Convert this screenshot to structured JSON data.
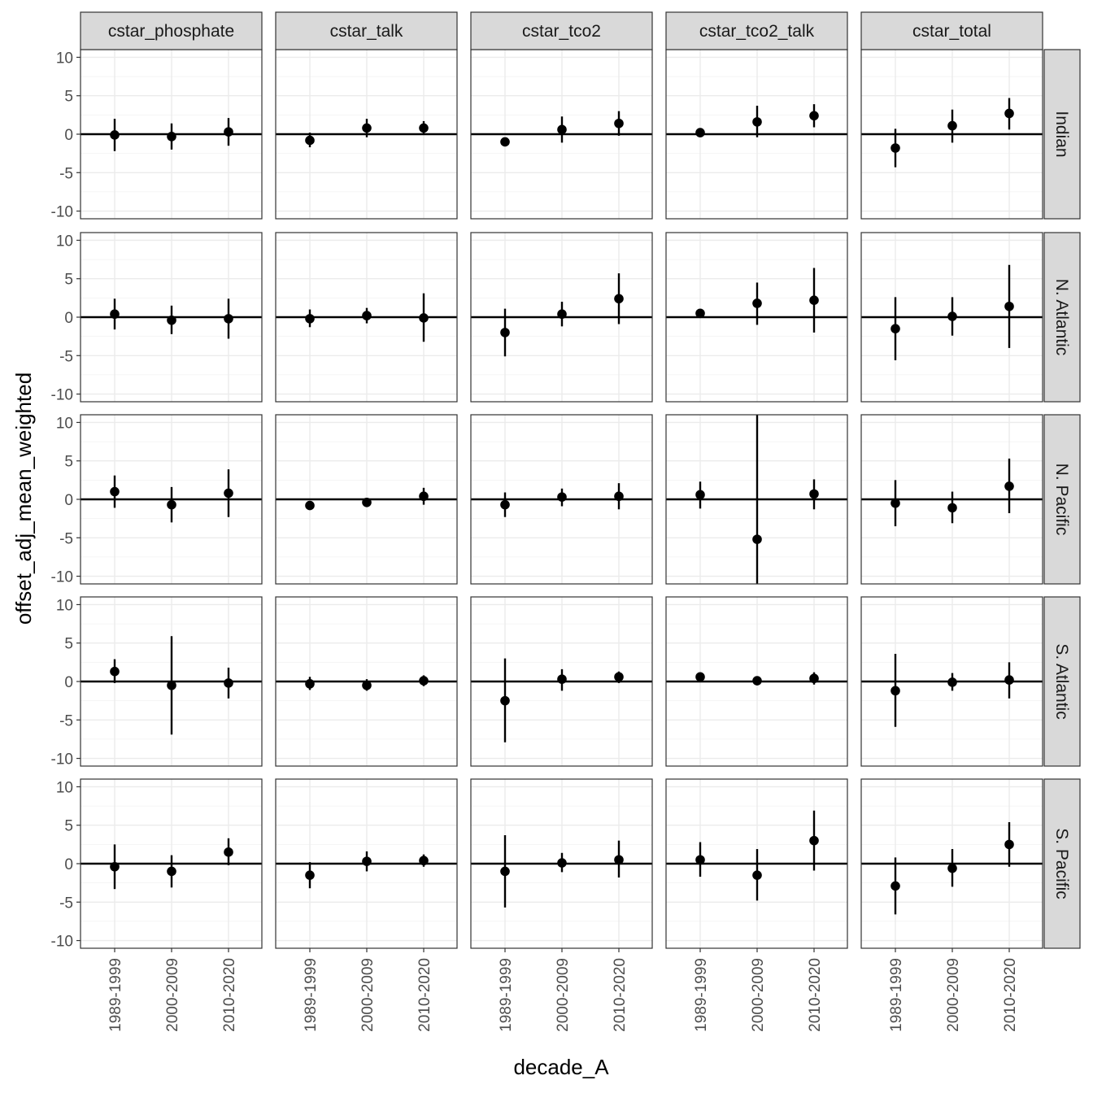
{
  "chart_data": {
    "type": "pointrange-facet-grid",
    "xlabel": "decade_A",
    "ylabel": "offset_adj_mean_weighted",
    "ylim": [
      -11,
      11
    ],
    "yticks": [
      -10,
      -5,
      0,
      5,
      10
    ],
    "categories": [
      "1989-1999",
      "2000-2009",
      "2010-2020"
    ],
    "columns": [
      "cstar_phosphate",
      "cstar_talk",
      "cstar_tco2",
      "cstar_tco2_talk",
      "cstar_total"
    ],
    "rows": [
      "Indian",
      "N. Atlantic",
      "N. Pacific",
      "S. Atlantic",
      "S. Pacific"
    ],
    "reference_line": 0,
    "panels": [
      [
        [
          {
            "y": -0.1,
            "lo": -2.2,
            "hi": 2.0
          },
          {
            "y": -0.3,
            "lo": -2.0,
            "hi": 1.4
          },
          {
            "y": 0.3,
            "lo": -1.5,
            "hi": 2.1
          }
        ],
        [
          {
            "y": -0.8,
            "lo": -1.7,
            "hi": 0.2
          },
          {
            "y": 0.8,
            "lo": -0.4,
            "hi": 2.0
          },
          {
            "y": 0.8,
            "lo": 0.0,
            "hi": 1.7
          }
        ],
        [
          {
            "y": -1.0,
            "lo": -1.4,
            "hi": -0.6
          },
          {
            "y": 0.6,
            "lo": -1.1,
            "hi": 2.3
          },
          {
            "y": 1.4,
            "lo": -0.2,
            "hi": 3.0
          }
        ],
        [
          {
            "y": 0.2,
            "lo": -0.1,
            "hi": 0.6
          },
          {
            "y": 1.6,
            "lo": -0.4,
            "hi": 3.7
          },
          {
            "y": 2.4,
            "lo": 0.9,
            "hi": 3.9
          }
        ],
        [
          {
            "y": -1.8,
            "lo": -4.3,
            "hi": 0.7
          },
          {
            "y": 1.1,
            "lo": -1.1,
            "hi": 3.2
          },
          {
            "y": 2.7,
            "lo": 0.6,
            "hi": 4.7
          }
        ]
      ],
      [
        [
          {
            "y": 0.4,
            "lo": -1.6,
            "hi": 2.4
          },
          {
            "y": -0.4,
            "lo": -2.2,
            "hi": 1.5
          },
          {
            "y": -0.2,
            "lo": -2.8,
            "hi": 2.4
          }
        ],
        [
          {
            "y": -0.2,
            "lo": -1.3,
            "hi": 1.0
          },
          {
            "y": 0.2,
            "lo": -0.8,
            "hi": 1.2
          },
          {
            "y": -0.1,
            "lo": -3.2,
            "hi": 3.1
          }
        ],
        [
          {
            "y": -2.0,
            "lo": -5.1,
            "hi": 1.1
          },
          {
            "y": 0.4,
            "lo": -1.2,
            "hi": 2.0
          },
          {
            "y": 2.4,
            "lo": -0.9,
            "hi": 5.7
          }
        ],
        [
          {
            "y": 0.5,
            "lo": 0.1,
            "hi": 0.9
          },
          {
            "y": 1.8,
            "lo": -1.0,
            "hi": 4.5
          },
          {
            "y": 2.2,
            "lo": -2.0,
            "hi": 6.4
          }
        ],
        [
          {
            "y": -1.5,
            "lo": -5.6,
            "hi": 2.6
          },
          {
            "y": 0.1,
            "lo": -2.4,
            "hi": 2.6
          },
          {
            "y": 1.4,
            "lo": -4.0,
            "hi": 6.8
          }
        ]
      ],
      [
        [
          {
            "y": 1.0,
            "lo": -1.1,
            "hi": 3.1
          },
          {
            "y": -0.7,
            "lo": -3.0,
            "hi": 1.6
          },
          {
            "y": 0.8,
            "lo": -2.3,
            "hi": 3.9
          }
        ],
        [
          {
            "y": -0.8,
            "lo": -1.2,
            "hi": -0.4
          },
          {
            "y": -0.4,
            "lo": -0.8,
            "hi": 0.0
          },
          {
            "y": 0.4,
            "lo": -0.7,
            "hi": 1.5
          }
        ],
        [
          {
            "y": -0.7,
            "lo": -2.3,
            "hi": 0.9
          },
          {
            "y": 0.3,
            "lo": -0.9,
            "hi": 1.4
          },
          {
            "y": 0.4,
            "lo": -1.3,
            "hi": 2.1
          }
        ],
        [
          {
            "y": 0.6,
            "lo": -1.2,
            "hi": 2.3
          },
          {
            "y": -5.2,
            "lo": -11.0,
            "hi": 11.0
          },
          {
            "y": 0.7,
            "lo": -1.3,
            "hi": 2.6
          }
        ],
        [
          {
            "y": -0.5,
            "lo": -3.5,
            "hi": 2.5
          },
          {
            "y": -1.1,
            "lo": -3.1,
            "hi": 1.0
          },
          {
            "y": 1.7,
            "lo": -1.8,
            "hi": 5.3
          }
        ]
      ],
      [
        [
          {
            "y": 1.3,
            "lo": -0.2,
            "hi": 2.9
          },
          {
            "y": -0.5,
            "lo": -6.9,
            "hi": 5.9
          },
          {
            "y": -0.2,
            "lo": -2.2,
            "hi": 1.8
          }
        ],
        [
          {
            "y": -0.3,
            "lo": -1.1,
            "hi": 0.6
          },
          {
            "y": -0.5,
            "lo": -1.2,
            "hi": 0.3
          },
          {
            "y": 0.1,
            "lo": -0.6,
            "hi": 0.8
          }
        ],
        [
          {
            "y": -2.5,
            "lo": -7.9,
            "hi": 3.0
          },
          {
            "y": 0.3,
            "lo": -1.2,
            "hi": 1.6
          },
          {
            "y": 0.6,
            "lo": -0.2,
            "hi": 1.3
          }
        ],
        [
          {
            "y": 0.6,
            "lo": 0.3,
            "hi": 0.9
          },
          {
            "y": 0.1,
            "lo": -0.2,
            "hi": 0.4
          },
          {
            "y": 0.4,
            "lo": -0.4,
            "hi": 1.2
          }
        ],
        [
          {
            "y": -1.2,
            "lo": -5.9,
            "hi": 3.6
          },
          {
            "y": -0.1,
            "lo": -1.2,
            "hi": 1.1
          },
          {
            "y": 0.2,
            "lo": -2.2,
            "hi": 2.5
          }
        ]
      ],
      [
        [
          {
            "y": -0.4,
            "lo": -3.3,
            "hi": 2.5
          },
          {
            "y": -1.0,
            "lo": -3.1,
            "hi": 1.1
          },
          {
            "y": 1.5,
            "lo": -0.2,
            "hi": 3.3
          }
        ],
        [
          {
            "y": -1.5,
            "lo": -3.2,
            "hi": 0.2
          },
          {
            "y": 0.3,
            "lo": -1.0,
            "hi": 1.6
          },
          {
            "y": 0.4,
            "lo": -0.4,
            "hi": 1.2
          }
        ],
        [
          {
            "y": -1.0,
            "lo": -5.7,
            "hi": 3.7
          },
          {
            "y": 0.1,
            "lo": -1.1,
            "hi": 1.4
          },
          {
            "y": 0.5,
            "lo": -1.8,
            "hi": 3.0
          }
        ],
        [
          {
            "y": 0.5,
            "lo": -1.7,
            "hi": 2.8
          },
          {
            "y": -1.5,
            "lo": -4.8,
            "hi": 1.9
          },
          {
            "y": 3.0,
            "lo": -0.9,
            "hi": 6.9
          }
        ],
        [
          {
            "y": -2.9,
            "lo": -6.6,
            "hi": 0.8
          },
          {
            "y": -0.6,
            "lo": -3.0,
            "hi": 1.9
          },
          {
            "y": 2.5,
            "lo": -0.4,
            "hi": 5.4
          }
        ]
      ]
    ]
  }
}
